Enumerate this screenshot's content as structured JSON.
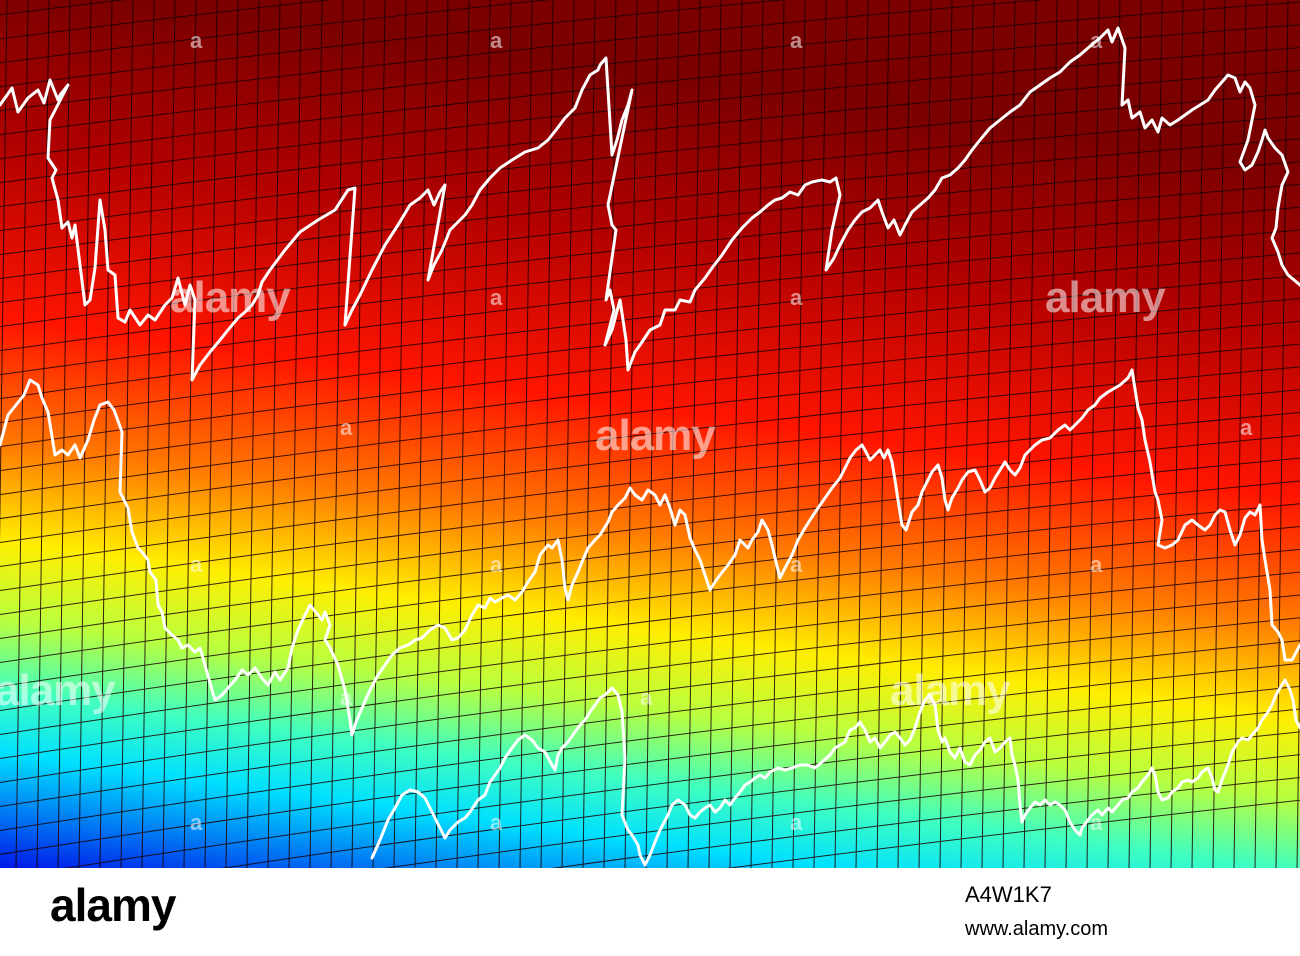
{
  "watermark": {
    "text": "alamy",
    "tile_mark": "a"
  },
  "footer": {
    "logo": "alamy",
    "image_id": "A4W1K7",
    "url": "www.alamy.com"
  },
  "colors": {
    "gradient_top": "#8a0000",
    "gradient_red": "#ff1a00",
    "gradient_orange": "#ff8c00",
    "gradient_yellow": "#ffff00",
    "gradient_green": "#8cff70",
    "gradient_cyan": "#00ffff",
    "gradient_blue": "#0010e0",
    "line_color": "#ffffff",
    "grid_color": "#1a0000"
  }
}
